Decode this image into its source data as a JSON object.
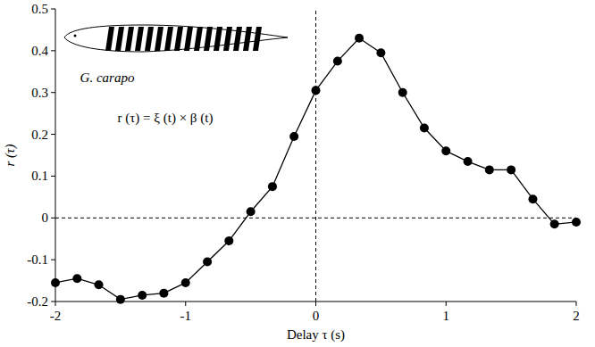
{
  "chart_data": {
    "type": "line",
    "x_label": "Delay τ (s)",
    "y_label": "r (τ)",
    "annotations": [
      "G. carapo",
      "r (τ) = ξ (t) × β (t)"
    ],
    "x": [
      -2,
      -1.833,
      -1.667,
      -1.5,
      -1.333,
      -1.167,
      -1,
      -0.833,
      -0.667,
      -0.5,
      -0.333,
      -0.167,
      0,
      0.167,
      0.333,
      0.5,
      0.667,
      0.833,
      1,
      1.167,
      1.333,
      1.5,
      1.667,
      1.833,
      2
    ],
    "series": [
      {
        "color": "#000000",
        "marker": "circle",
        "line_style": "solid",
        "values": [
          -0.155,
          -0.145,
          -0.16,
          -0.195,
          -0.185,
          -0.18,
          -0.155,
          -0.105,
          -0.055,
          0.015,
          0.075,
          0.195,
          0.305,
          0.375,
          0.43,
          0.395,
          0.3,
          0.215,
          0.16,
          0.135,
          0.115,
          0.115,
          0.045,
          -0.015,
          -0.01
        ]
      }
    ],
    "xlim": [
      -2,
      2
    ],
    "ylim": [
      -0.2,
      0.5
    ],
    "xticks": [
      -2,
      -1,
      0,
      1,
      2
    ],
    "yticks": [
      -0.2,
      -0.1,
      0,
      0.1,
      0.2,
      0.3,
      0.4,
      0.5
    ],
    "reference_lines": {
      "x": [
        0
      ],
      "y": [
        0
      ]
    },
    "grid": false
  }
}
